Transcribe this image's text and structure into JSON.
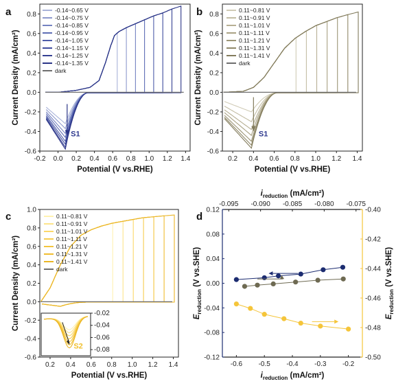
{
  "colors": {
    "a_sweeps": [
      "#a9b3d9",
      "#8d99cd",
      "#7482c1",
      "#5d6cb4",
      "#4d5ca9",
      "#3f4c9e",
      "#343f92",
      "#2a3486"
    ],
    "b_sweeps": [
      "#d0cbb6",
      "#c3bda4",
      "#b6af93",
      "#a9a284",
      "#9c9576",
      "#8f8868",
      "#827b5c"
    ],
    "c_sweeps": [
      "#fff2b0",
      "#fde48a",
      "#fbd86a",
      "#f7cd4f",
      "#f4c53d",
      "#f0bd2f",
      "#eab525"
    ],
    "dark": "#6e6e6e",
    "d_navy": "#1c2c70",
    "d_olive": "#6e6a52",
    "d_yellow": "#f5c53a"
  },
  "panels": {
    "a": {
      "label": "a",
      "xlabel": "Potential (V vs.RHE)",
      "ylabel": "Current Density (mA/cm²)",
      "xticks": [
        "-0.2",
        "0.0",
        "0.2",
        "0.4",
        "0.6",
        "0.8",
        "1.0",
        "1.2",
        "1.4"
      ],
      "yticks": [
        "-0.6",
        "-0.4",
        "-0.2",
        "0.0",
        "0.2",
        "0.4",
        "0.6",
        "0.8"
      ],
      "legend": [
        "-0.14~0.65 V",
        "-0.14~0.75 V",
        "-0.14~0.85 V",
        "-0.14~0.95 V",
        "-0.14~1.05 V",
        "-0.14~1.15 V",
        "-0.14~1.25 V",
        "-0.14~1.35 V",
        "dark"
      ],
      "annotation": "S1"
    },
    "b": {
      "label": "b",
      "xlabel": "Potential (V vs.RHE)",
      "ylabel": "Current Density (mA/cm²)",
      "xticks": [
        "0.2",
        "0.4",
        "0.6",
        "0.8",
        "1.0",
        "1.2",
        "1.4"
      ],
      "yticks": [
        "-0.6",
        "-0.4",
        "-0.2",
        "0.0",
        "0.2",
        "0.4",
        "0.6",
        "0.8"
      ],
      "legend": [
        "0.11~0.81 V",
        "0.11~0.91 V",
        "0.11~1.01 V",
        "0.11~1.11 V",
        "0.11~1.21 V",
        "0.11~1.31 V",
        "0.11~1.41 V",
        "dark"
      ],
      "annotation": "S1"
    },
    "c": {
      "label": "c",
      "xlabel": "Potential (V vs.RHE)",
      "ylabel": "Current Density (mA/cm²)",
      "xticks": [
        "0.2",
        "0.4",
        "0.6",
        "0.8",
        "1.0",
        "1.2",
        "1.4"
      ],
      "yticks": [
        "-0.6",
        "-0.4",
        "-0.2",
        "0.0",
        "0.2",
        "0.4",
        "0.6",
        "0.8",
        "1.0"
      ],
      "legend": [
        "0.11~0.81 V",
        "0.11~0.91 V",
        "0.11~1.01 V",
        "0.11~1.11 V",
        "0.11~1.21 V",
        "0.11~1.31 V",
        "0.11~1.41 V",
        "dark"
      ],
      "inset_yticks": [
        "-0.02",
        "-0.04",
        "-0.06",
        "-0.08"
      ],
      "annotation": "S2"
    },
    "d": {
      "label": "d",
      "xlabel_main": "i",
      "xlabel_sub": "reduction",
      "xlabel_unit": " (mA/cm²)",
      "ylabel_main": "E",
      "ylabel_sub": "reduction",
      "ylabel_unit": " (V vs.SHE)",
      "xticks_bottom": [
        "-0.6",
        "-0.5",
        "-0.4",
        "-0.3",
        "-0.2"
      ],
      "xticks_top": [
        "-0.095",
        "-0.090",
        "-0.085",
        "-0.080",
        "-0.075"
      ],
      "yticks_left": [
        "-0.12",
        "-0.08",
        "-0.04",
        "0.00",
        "0.04",
        "0.08",
        "0.12"
      ],
      "yticks_right": [
        "-0.50",
        "-0.48",
        "-0.46",
        "-0.44",
        "-0.42",
        "-0.40"
      ]
    }
  },
  "chart_data": [
    {
      "panel": "a",
      "type": "line",
      "xlabel": "Potential (V vs.RHE)",
      "ylabel": "Current Density (mA/cm²)",
      "xlim": [
        -0.2,
        1.45
      ],
      "ylim": [
        -0.6,
        0.9
      ],
      "series": [
        {
          "name": "-0.14~0.65 V",
          "upper_limit": 0.65
        },
        {
          "name": "-0.14~0.75 V",
          "upper_limit": 0.75
        },
        {
          "name": "-0.14~0.85 V",
          "upper_limit": 0.85
        },
        {
          "name": "-0.14~0.95 V",
          "upper_limit": 0.95
        },
        {
          "name": "-0.14~1.05 V",
          "upper_limit": 1.05
        },
        {
          "name": "-0.14~1.15 V",
          "upper_limit": 1.15
        },
        {
          "name": "-0.14~1.25 V",
          "upper_limit": 1.25
        },
        {
          "name": "-0.14~1.35 V",
          "upper_limit": 1.35
        },
        {
          "name": "dark"
        }
      ],
      "anodic_sweep": {
        "x": [
          -0.14,
          0.0,
          0.2,
          0.35,
          0.45,
          0.52,
          0.58,
          0.62,
          0.67,
          0.75,
          0.85,
          0.95,
          1.05,
          1.15,
          1.25,
          1.35
        ],
        "y": [
          0.0,
          0.0,
          0.02,
          0.05,
          0.12,
          0.3,
          0.48,
          0.58,
          0.62,
          0.66,
          0.7,
          0.74,
          0.78,
          0.81,
          0.85,
          0.88
        ]
      },
      "reduction_peak_x": 0.08,
      "reduction_peak_y": [
        -0.32,
        -0.37,
        -0.42,
        -0.46,
        -0.5,
        -0.53,
        -0.56,
        -0.58
      ]
    },
    {
      "panel": "b",
      "type": "line",
      "xlabel": "Potential (V vs.RHE)",
      "ylabel": "Current Density (mA/cm²)",
      "xlim": [
        0.1,
        1.45
      ],
      "ylim": [
        -0.6,
        0.9
      ],
      "series": [
        {
          "name": "0.11~0.81 V",
          "upper_limit": 0.81
        },
        {
          "name": "0.11~0.91 V",
          "upper_limit": 0.91
        },
        {
          "name": "0.11~1.01 V",
          "upper_limit": 1.01
        },
        {
          "name": "0.11~1.11 V",
          "upper_limit": 1.11
        },
        {
          "name": "0.11~1.21 V",
          "upper_limit": 1.21
        },
        {
          "name": "0.11~1.31 V",
          "upper_limit": 1.31
        },
        {
          "name": "0.11~1.41 V",
          "upper_limit": 1.41
        },
        {
          "name": "dark"
        }
      ],
      "anodic_sweep": {
        "x": [
          0.11,
          0.3,
          0.4,
          0.5,
          0.6,
          0.7,
          0.8,
          0.9,
          1.0,
          1.1,
          1.2,
          1.3,
          1.41
        ],
        "y": [
          0.0,
          0.01,
          0.05,
          0.15,
          0.3,
          0.45,
          0.55,
          0.62,
          0.68,
          0.72,
          0.76,
          0.79,
          0.82
        ]
      },
      "reduction_peak_x": 0.38,
      "reduction_peak_y": [
        -0.2,
        -0.3,
        -0.38,
        -0.44,
        -0.5,
        -0.54,
        -0.57
      ]
    },
    {
      "panel": "c",
      "type": "line",
      "xlabel": "Potential (V vs.RHE)",
      "ylabel": "Current Density (mA/cm²)",
      "xlim": [
        0.1,
        1.45
      ],
      "ylim": [
        -0.6,
        1.0
      ],
      "series": [
        {
          "name": "0.11~0.81 V",
          "upper_limit": 0.81
        },
        {
          "name": "0.11~0.91 V",
          "upper_limit": 0.91
        },
        {
          "name": "0.11~1.01 V",
          "upper_limit": 1.01
        },
        {
          "name": "0.11~1.11 V",
          "upper_limit": 1.11
        },
        {
          "name": "0.11~1.21 V",
          "upper_limit": 1.21
        },
        {
          "name": "0.11~1.31 V",
          "upper_limit": 1.31
        },
        {
          "name": "0.11~1.41 V",
          "upper_limit": 1.41
        },
        {
          "name": "dark"
        }
      ],
      "anodic_sweep": {
        "x": [
          0.11,
          0.2,
          0.3,
          0.4,
          0.5,
          0.6,
          0.7,
          0.8,
          0.9,
          1.0,
          1.1,
          1.2,
          1.3,
          1.41
        ],
        "y": [
          0.0,
          0.15,
          0.4,
          0.6,
          0.72,
          0.78,
          0.82,
          0.85,
          0.87,
          0.89,
          0.91,
          0.92,
          0.93,
          0.94
        ]
      },
      "inset": {
        "ylim": [
          -0.09,
          -0.02
        ],
        "peak_x": 0.3,
        "peak_y": -0.06
      }
    },
    {
      "panel": "d",
      "type": "scatter",
      "xlim": [
        -0.65,
        -0.15
      ],
      "ylim": [
        -0.12,
        0.12
      ],
      "x2lim": [
        -0.096,
        -0.074
      ],
      "y2lim": [
        -0.5,
        -0.4
      ],
      "series": [
        {
          "axes": "bottom-left",
          "x": [
            -0.6,
            -0.5,
            -0.45,
            -0.37,
            -0.29,
            -0.22
          ],
          "y": [
            0.006,
            0.009,
            0.012,
            0.015,
            0.022,
            0.026
          ]
        },
        {
          "axes": "top-left",
          "x": [
            -0.0925,
            -0.0905,
            -0.088,
            -0.0845,
            -0.081,
            -0.077
          ],
          "y": [
            -0.005,
            -0.003,
            -0.001,
            0.002,
            0.005,
            0.007
          ]
        },
        {
          "axes": "bottom-right",
          "x": [
            -0.6,
            -0.55,
            -0.5,
            -0.43,
            -0.37,
            -0.3,
            -0.2
          ],
          "y": [
            -0.464,
            -0.467,
            -0.471,
            -0.474,
            -0.477,
            -0.479,
            -0.481
          ]
        }
      ]
    }
  ]
}
